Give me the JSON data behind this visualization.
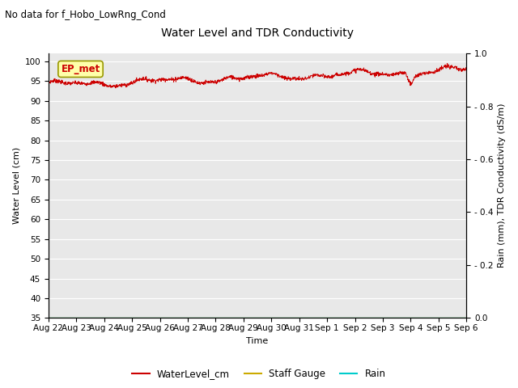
{
  "title": "Water Level and TDR Conductivity",
  "subtitle": "No data for f_Hobo_LowRng_Cond",
  "station_label": "EP_met",
  "xlabel": "Time",
  "ylabel_left": "Water Level (cm)",
  "ylabel_right": "Rain (mm), TDR Conductivity (dS/m)",
  "ylim_left": [
    35,
    102
  ],
  "ylim_right": [
    0.0,
    1.0
  ],
  "yticks_left": [
    35,
    40,
    45,
    50,
    55,
    60,
    65,
    70,
    75,
    80,
    85,
    90,
    95,
    100
  ],
  "yticks_right_vals": [
    0.0,
    0.2,
    0.4,
    0.6,
    0.8,
    1.0
  ],
  "yticks_right_labels": [
    "0.0",
    "- 0.2",
    "- 0.4",
    "- 0.6",
    "- 0.8",
    "1.0"
  ],
  "bg_color": "#e8e8e8",
  "water_level_color": "#cc0000",
  "staff_gauge_color": "#ccaa00",
  "rain_color": "#00cccc",
  "legend_labels": [
    "WaterLevel_cm",
    "Staff Gauge",
    "Rain"
  ],
  "x_tick_labels": [
    "Aug 22",
    "Aug 23",
    "Aug 24",
    "Aug 25",
    "Aug 26",
    "Aug 27",
    "Aug 28",
    "Aug 29",
    "Aug 30",
    "Aug 31",
    "Sep 1",
    "Sep 2",
    "Sep 3",
    "Sep 4",
    "Sep 5",
    "Sep 6"
  ],
  "n_points": 1500
}
